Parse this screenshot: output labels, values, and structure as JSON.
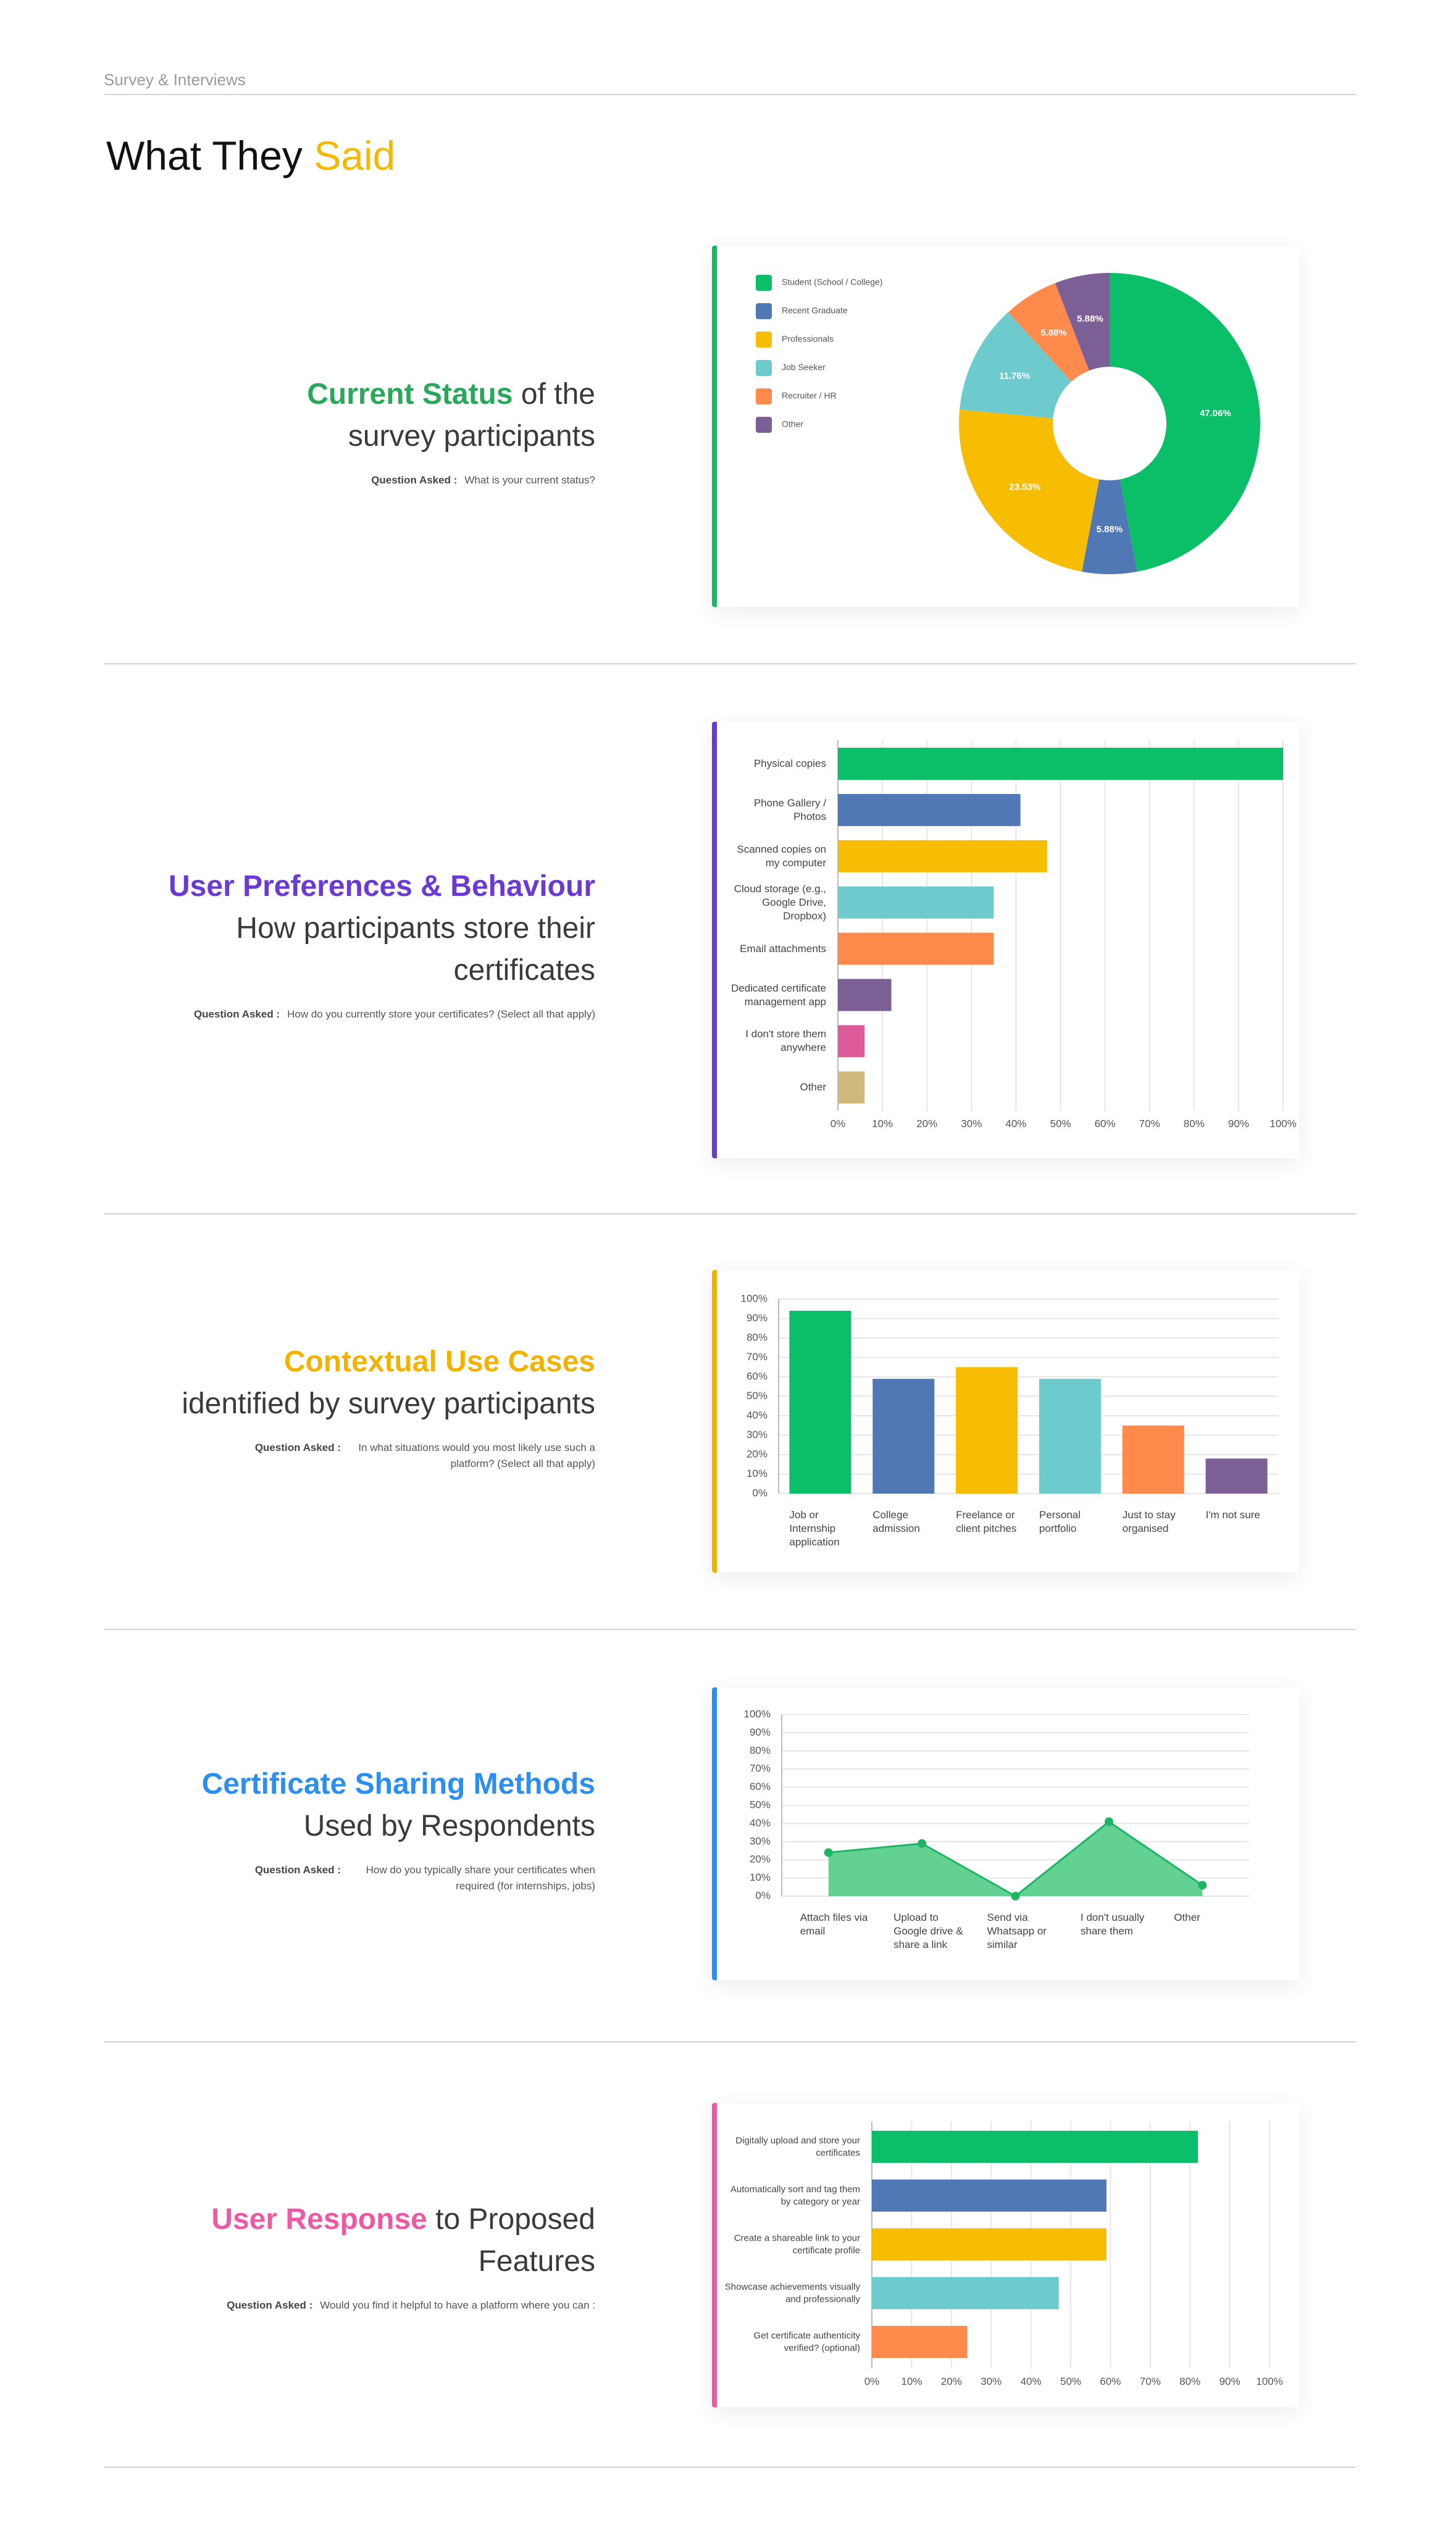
{
  "header": {
    "breadcrumb": "Survey & Interviews",
    "title": "What They",
    "title_accent": "Said"
  },
  "sections": [
    {
      "heading_accent": "Current Status",
      "heading_rest": "of the survey participants",
      "question_label": "Question Asked :",
      "question": "What is your current status?"
    },
    {
      "heading_accent": "User Preferences & Behaviour",
      "heading_rest": "How participants store their certificates",
      "question_label": "Question Asked :",
      "question": "How do you currently store your certificates? (Select all that apply)"
    },
    {
      "heading_accent": "Contextual Use Cases",
      "heading_rest": "identified by survey participants",
      "question_label": "Question Asked :",
      "question": "In what situations would you most likely use such a platform? (Select all that apply)"
    },
    {
      "heading_accent": "Certificate Sharing Methods",
      "heading_rest": "Used by Respondents",
      "question_label": "Question Asked :",
      "question": "How do you typically share your certificates when required (for internships, jobs)"
    },
    {
      "heading_accent": "User Response",
      "heading_rest": "to Proposed Features",
      "question_label": "Question Asked :",
      "question": "Would you find it helpful to have a platform where you can :"
    }
  ],
  "chart_data": [
    {
      "type": "pie",
      "categories": [
        "Student (School / College)",
        "Recent Graduate",
        "Professionals",
        "Job Seeker",
        "Recruiter / HR",
        "Other"
      ],
      "values": [
        47.06,
        5.88,
        23.53,
        11.76,
        5.88,
        5.88
      ],
      "value_labels": [
        "47.06%",
        "5.88%",
        "23.53%",
        "11.76%",
        "5.88%",
        "5.88%"
      ],
      "colors": [
        "#0bbf69",
        "#4f78b5",
        "#f7bd02",
        "#6dcacd",
        "#fe8a4c",
        "#7b5f95"
      ]
    },
    {
      "type": "hbar",
      "categories": [
        "Physical copies",
        "Phone Gallery / Photos",
        "Scanned copies on my computer",
        "Cloud storage (e.g., Google Drive, Dropbox)",
        "Email attachments",
        "Dedicated certificate management app",
        "I don't store them anywhere",
        "Other"
      ],
      "values": [
        100,
        41,
        47,
        35,
        35,
        12,
        6,
        6
      ],
      "colors": [
        "#0bbf69",
        "#4f78b5",
        "#f7bd02",
        "#6dcacd",
        "#fe8a4c",
        "#7b5f95",
        "#dd5b99",
        "#cdba7c"
      ],
      "xlim": [
        0,
        100
      ],
      "xticks": [
        {
          "value": 0,
          "label": "0%"
        },
        {
          "value": 10,
          "label": "10%"
        },
        {
          "value": 20,
          "label": "20%"
        },
        {
          "value": 30,
          "label": "30%"
        },
        {
          "value": 40,
          "label": "40%"
        },
        {
          "value": 50,
          "label": "50%"
        },
        {
          "value": 60,
          "label": "60%"
        },
        {
          "value": 70,
          "label": "70%"
        },
        {
          "value": 80,
          "label": "80%"
        },
        {
          "value": 90,
          "label": "90%"
        },
        {
          "value": 100,
          "label": "100%"
        }
      ],
      "grid": true
    },
    {
      "type": "bar",
      "categories": [
        "Job or Internship application",
        "College admission",
        "Freelance or client pitches",
        "Personal portfolio",
        "Just to stay organised",
        "I'm not sure"
      ],
      "values": [
        94,
        59,
        65,
        59,
        35,
        18
      ],
      "colors": [
        "#0bbf69",
        "#4f78b5",
        "#f7bd02",
        "#6dcacd",
        "#fe8a4c",
        "#7b5f95"
      ],
      "ylim": [
        0,
        100
      ],
      "yticks": [
        {
          "value": 0,
          "label": "0%"
        },
        {
          "value": 10,
          "label": "10%"
        },
        {
          "value": 20,
          "label": "20%"
        },
        {
          "value": 30,
          "label": "30%"
        },
        {
          "value": 40,
          "label": "40%"
        },
        {
          "value": 50,
          "label": "50%"
        },
        {
          "value": 60,
          "label": "60%"
        },
        {
          "value": 70,
          "label": "70%"
        },
        {
          "value": 80,
          "label": "80%"
        },
        {
          "value": 90,
          "label": "90%"
        },
        {
          "value": 100,
          "label": "100%"
        }
      ],
      "grid": true
    },
    {
      "type": "area",
      "categories": [
        "Attach files via email",
        "Upload to Google drive & share a link",
        "Send via Whatsapp or similar",
        "I don't usually share them",
        "Other"
      ],
      "values": [
        24,
        29,
        0,
        41,
        6
      ],
      "color": "#63d192",
      "line_color": "#1db565",
      "ylim": [
        0,
        100
      ],
      "yticks": [
        {
          "value": 0,
          "label": "0%"
        },
        {
          "value": 10,
          "label": "10%"
        },
        {
          "value": 20,
          "label": "20%"
        },
        {
          "value": 30,
          "label": "30%"
        },
        {
          "value": 40,
          "label": "40%"
        },
        {
          "value": 50,
          "label": "50%"
        },
        {
          "value": 60,
          "label": "60%"
        },
        {
          "value": 70,
          "label": "70%"
        },
        {
          "value": 80,
          "label": "80%"
        },
        {
          "value": 90,
          "label": "90%"
        },
        {
          "value": 100,
          "label": "100%"
        }
      ],
      "grid": true
    },
    {
      "type": "hbar",
      "categories": [
        "Digitally upload and store your certificates",
        "Automatically sort and tag them by category or year",
        "Create a shareable link to your certificate profile",
        "Showcase achievements visually and professionally",
        "Get certificate authenticity verified? (optional)"
      ],
      "values": [
        82,
        59,
        59,
        47,
        24
      ],
      "colors": [
        "#0bbf69",
        "#4f78b5",
        "#f7bd02",
        "#6dcacd",
        "#fe8a4c"
      ],
      "xlim": [
        0,
        100
      ],
      "xticks": [
        {
          "value": 0,
          "label": "0%"
        },
        {
          "value": 10,
          "label": "10%"
        },
        {
          "value": 20,
          "label": "20%"
        },
        {
          "value": 30,
          "label": "30%"
        },
        {
          "value": 40,
          "label": "40%"
        },
        {
          "value": 50,
          "label": "50%"
        },
        {
          "value": 60,
          "label": "60%"
        },
        {
          "value": 70,
          "label": "70%"
        },
        {
          "value": 80,
          "label": "80%"
        },
        {
          "value": 90,
          "label": "90%"
        },
        {
          "value": 100,
          "label": "100%"
        }
      ],
      "grid": true
    }
  ]
}
